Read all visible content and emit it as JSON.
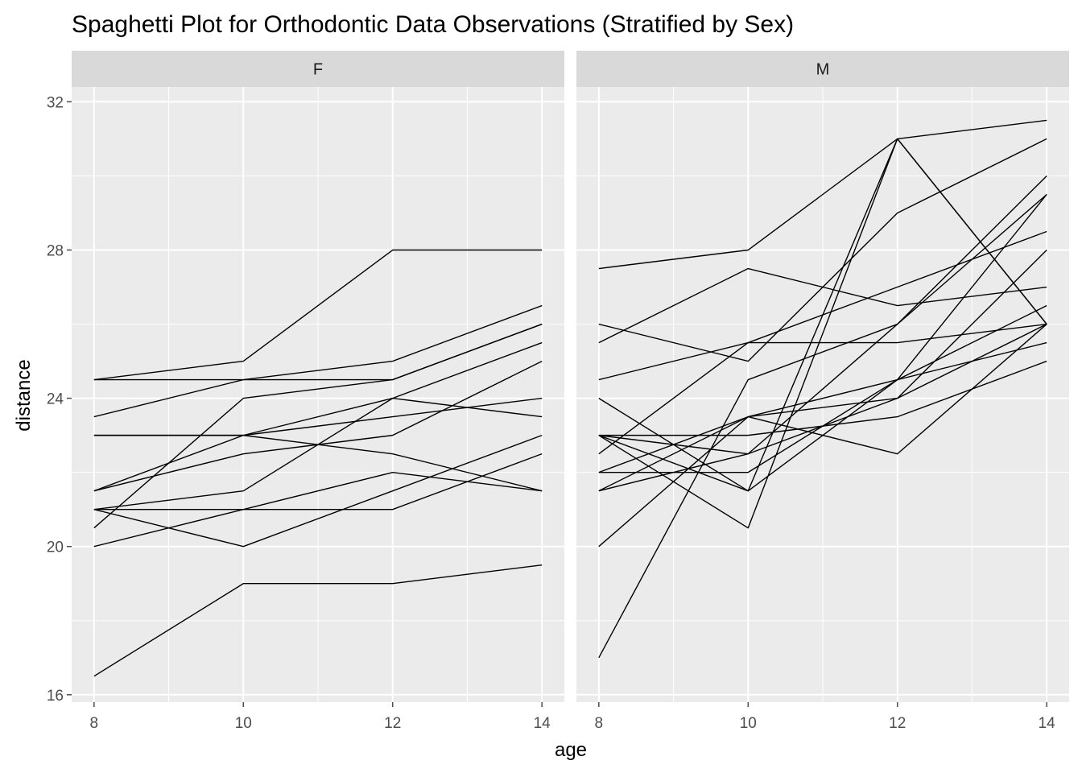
{
  "chart_data": {
    "type": "line",
    "title": "Spaghetti Plot for Orthodontic Data Observations (Stratified by Sex)",
    "xlabel": "age",
    "ylabel": "distance",
    "x": [
      8,
      10,
      12,
      14
    ],
    "xlim": [
      7.7,
      14.3
    ],
    "ylim": [
      15.8,
      32.4
    ],
    "x_ticks": [
      "8",
      "10",
      "12",
      "14"
    ],
    "y_ticks": [
      "16",
      "20",
      "24",
      "28",
      "32"
    ],
    "grid": true,
    "legend": "none",
    "colors": {
      "panel_bg": "#ebebeb",
      "strip_bg": "#d9d9d9",
      "grid": "#ffffff",
      "line": "#000000",
      "tick": "#4d4d4d"
    },
    "facets": [
      {
        "label": "F",
        "series": [
          {
            "values": [
              24.5,
              25.0,
              28.0,
              28.0
            ]
          },
          {
            "values": [
              24.5,
              24.5,
              25.0,
              26.5
            ]
          },
          {
            "values": [
              23.5,
              24.5,
              24.5,
              26.0
            ]
          },
          {
            "values": [
              23.0,
              23.0,
              23.5,
              24.0
            ]
          },
          {
            "values": [
              23.0,
              23.0,
              22.5,
              21.5
            ]
          },
          {
            "values": [
              21.5,
              23.0,
              24.0,
              25.5
            ]
          },
          {
            "values": [
              21.5,
              22.5,
              23.0,
              25.0
            ]
          },
          {
            "values": [
              21.0,
              21.5,
              24.0,
              23.5
            ]
          },
          {
            "values": [
              21.0,
              21.0,
              21.0,
              22.5
            ]
          },
          {
            "values": [
              21.0,
              20.0,
              21.5,
              23.0
            ]
          },
          {
            "values": [
              20.5,
              24.0,
              24.5,
              26.0
            ]
          },
          {
            "values": [
              20.0,
              21.0,
              22.0,
              21.5
            ]
          },
          {
            "values": [
              16.5,
              19.0,
              19.0,
              19.5
            ]
          }
        ]
      },
      {
        "label": "M",
        "series": [
          {
            "values": [
              27.5,
              28.0,
              31.0,
              31.5
            ]
          },
          {
            "values": [
              26.0,
              25.0,
              29.0,
              31.0
            ]
          },
          {
            "values": [
              25.5,
              27.5,
              26.5,
              27.0
            ]
          },
          {
            "values": [
              24.5,
              25.5,
              27.0,
              28.5
            ]
          },
          {
            "values": [
              23.0,
              22.5,
              24.0,
              26.0
            ]
          },
          {
            "values": [
              23.0,
              23.0,
              23.5,
              25.0
            ]
          },
          {
            "values": [
              23.0,
              21.5,
              31.0,
              26.0
            ]
          },
          {
            "values": [
              22.5,
              25.5,
              25.5,
              26.0
            ]
          },
          {
            "values": [
              22.0,
              22.0,
              24.5,
              26.5
            ]
          },
          {
            "values": [
              22.0,
              23.5,
              22.5,
              26.0
            ]
          },
          {
            "values": [
              21.5,
              23.5,
              24.0,
              28.0
            ]
          },
          {
            "values": [
              21.5,
              22.5,
              26.0,
              30.0
            ]
          },
          {
            "values": [
              24.0,
              21.5,
              24.5,
              25.5
            ]
          },
          {
            "values": [
              23.0,
              20.5,
              31.0,
              26.0
            ]
          },
          {
            "values": [
              20.0,
              23.5,
              24.5,
              29.5
            ]
          },
          {
            "values": [
              17.0,
              24.5,
              26.0,
              29.5
            ]
          }
        ]
      }
    ]
  }
}
